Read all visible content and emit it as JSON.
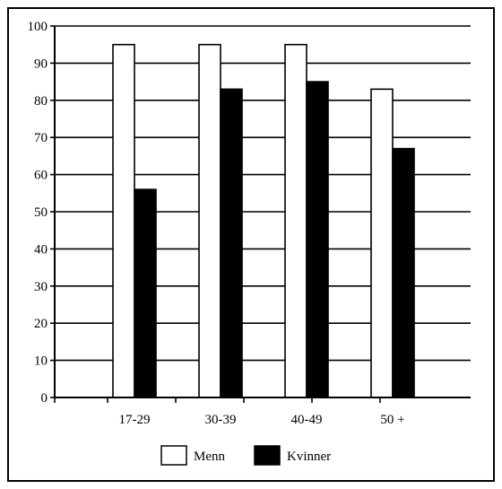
{
  "chart_data": {
    "type": "bar",
    "categories": [
      "17-29",
      "30-39",
      "40-49",
      "50 +"
    ],
    "series": [
      {
        "name": "Menn",
        "values": [
          95,
          95,
          95,
          83
        ],
        "color": "#ffffff"
      },
      {
        "name": "Kvinner",
        "values": [
          56,
          83,
          85,
          67
        ],
        "color": "#000000"
      }
    ],
    "y_ticks": [
      "0",
      "10",
      "20",
      "30",
      "40",
      "50",
      "60",
      "70",
      "80",
      "90",
      "100"
    ],
    "ylim": [
      0,
      100
    ],
    "grid": true,
    "legend_position": "bottom-center"
  }
}
